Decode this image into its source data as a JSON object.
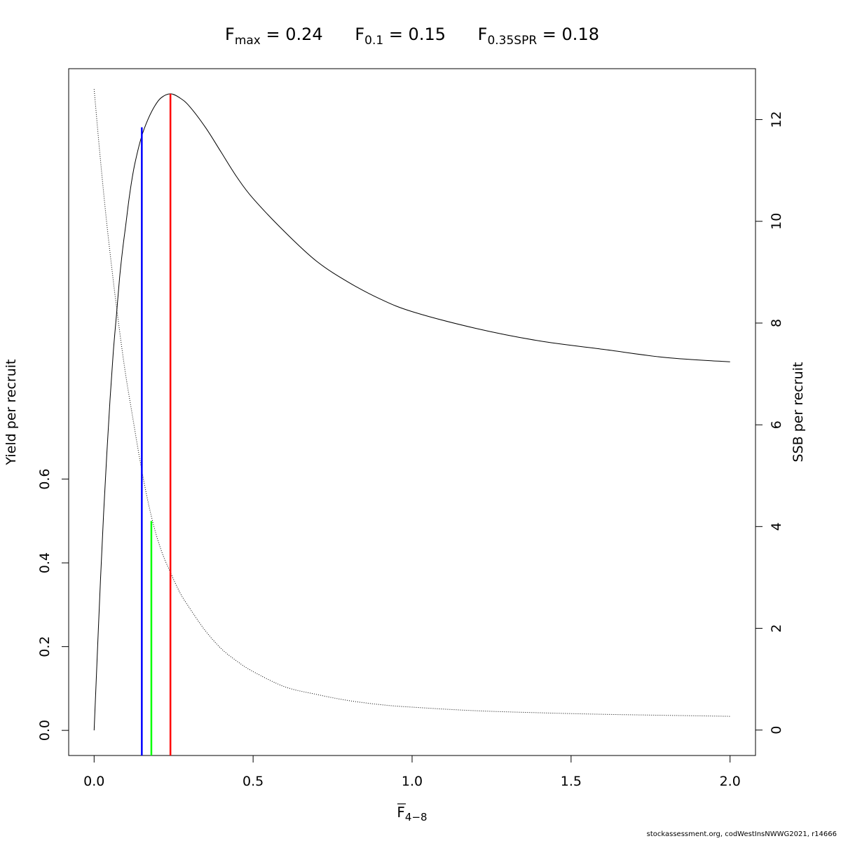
{
  "title": {
    "fmax": {
      "base": "F",
      "sub": "max",
      "rest": " = 0.24"
    },
    "f01": {
      "base": "F",
      "sub": "0.1",
      "rest": " = 0.15"
    },
    "fspr": {
      "base": "F",
      "sub": "0.35SPR",
      "rest": " = 0.18"
    }
  },
  "credit": "stockassessment.org, codWestInsNWWG2021, r14666",
  "chart_data": {
    "type": "line",
    "xlabel": {
      "base": "F",
      "sub": "4−8",
      "overline": true
    },
    "ylabel": "Yield per recruit",
    "y2label": "SSB per recruit",
    "xlim": [
      -0.08,
      2.08
    ],
    "ylim": [
      -0.06,
      1.58
    ],
    "y2lim": [
      -0.5,
      13.0
    ],
    "xticks": [
      {
        "v": 0.0,
        "label": "0.0"
      },
      {
        "v": 0.5,
        "label": "0.5"
      },
      {
        "v": 1.0,
        "label": "1.0"
      },
      {
        "v": 1.5,
        "label": "1.5"
      },
      {
        "v": 2.0,
        "label": "2.0"
      }
    ],
    "yticks": [
      {
        "v": 0.0,
        "label": "0.0"
      },
      {
        "v": 0.2,
        "label": "0.2"
      },
      {
        "v": 0.4,
        "label": "0.4"
      },
      {
        "v": 0.6,
        "label": "0.6"
      }
    ],
    "y2ticks": [
      {
        "v": 0,
        "label": "0"
      },
      {
        "v": 2,
        "label": "2"
      },
      {
        "v": 4,
        "label": "4"
      },
      {
        "v": 6,
        "label": "6"
      },
      {
        "v": 8,
        "label": "8"
      },
      {
        "v": 10,
        "label": "10"
      },
      {
        "v": 12,
        "label": "12"
      }
    ],
    "series": [
      {
        "axis": "left",
        "style": "solid",
        "color": "#000000",
        "x": [
          0,
          0.01,
          0.02,
          0.03,
          0.04,
          0.05,
          0.06,
          0.07,
          0.08,
          0.09,
          0.1,
          0.11,
          0.12,
          0.13,
          0.15,
          0.17,
          0.19,
          0.21,
          0.24,
          0.27,
          0.3,
          0.35,
          0.4,
          0.45,
          0.5,
          0.6,
          0.7,
          0.8,
          0.9,
          1.0,
          1.2,
          1.4,
          1.6,
          1.8,
          2.0
        ],
        "y": [
          0.0,
          0.18,
          0.36,
          0.52,
          0.66,
          0.79,
          0.9,
          0.99,
          1.08,
          1.15,
          1.21,
          1.27,
          1.32,
          1.36,
          1.42,
          1.46,
          1.49,
          1.51,
          1.52,
          1.51,
          1.49,
          1.44,
          1.38,
          1.32,
          1.27,
          1.19,
          1.12,
          1.07,
          1.03,
          1.0,
          0.96,
          0.93,
          0.91,
          0.89,
          0.88
        ]
      },
      {
        "axis": "right",
        "style": "dotted",
        "color": "#000000",
        "x": [
          0,
          0.02,
          0.04,
          0.06,
          0.08,
          0.1,
          0.12,
          0.15,
          0.18,
          0.21,
          0.24,
          0.27,
          0.3,
          0.35,
          0.4,
          0.45,
          0.5,
          0.6,
          0.7,
          0.8,
          0.9,
          1.0,
          1.2,
          1.4,
          1.6,
          1.8,
          2.0
        ],
        "y": [
          12.6,
          11.2,
          9.95,
          8.85,
          7.85,
          6.95,
          6.2,
          5.1,
          4.2,
          3.55,
          3.1,
          2.7,
          2.4,
          1.95,
          1.6,
          1.35,
          1.15,
          0.85,
          0.7,
          0.58,
          0.5,
          0.45,
          0.38,
          0.34,
          0.31,
          0.29,
          0.27
        ]
      }
    ],
    "reference_lines": [
      {
        "x": 0.15,
        "y": 1.44,
        "color": "#0000ff"
      },
      {
        "x": 0.18,
        "y": 0.5,
        "color": "#00ff00"
      },
      {
        "x": 0.24,
        "y": 1.52,
        "color": "#ff0000"
      }
    ]
  }
}
